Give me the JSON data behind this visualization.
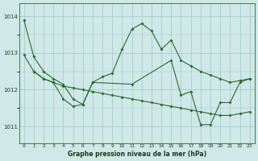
{
  "title": "Graphe pression niveau de la mer (hPa)",
  "bg_color": "#cfe8e8",
  "grid_color": "#a0c8c8",
  "line_color": "#2d6a2d",
  "xlim": [
    -0.5,
    23.5
  ],
  "ylim": [
    1010.55,
    1014.35
  ],
  "yticks": [
    1011,
    1012,
    1013,
    1014
  ],
  "xticks": [
    0,
    1,
    2,
    3,
    4,
    5,
    6,
    7,
    8,
    9,
    10,
    11,
    12,
    13,
    14,
    15,
    16,
    17,
    18,
    19,
    20,
    21,
    22,
    23
  ],
  "lineA": [
    1013.9,
    1012.9,
    1012.5,
    1012.3,
    1012.15,
    1011.75,
    1011.6,
    1012.2,
    1012.35,
    1012.45,
    1013.1,
    1013.65,
    1013.8,
    1013.6,
    1013.1,
    1013.35,
    1012.8,
    1012.65,
    1012.5,
    1012.4,
    1012.3,
    1012.2,
    1012.25,
    1012.3
  ],
  "lineB": [
    1012.95,
    1012.5,
    1012.3,
    1012.2,
    1012.1,
    1012.05,
    1012.0,
    1011.95,
    1011.9,
    1011.85,
    1011.8,
    1011.75,
    1011.7,
    1011.65,
    1011.6,
    1011.55,
    1011.5,
    1011.45,
    1011.4,
    1011.35,
    1011.3,
    1011.3,
    1011.35,
    1011.4
  ],
  "lineC_x": [
    1,
    2,
    3,
    4,
    5,
    6,
    7,
    11,
    15,
    16,
    17,
    18,
    19,
    20,
    21,
    22,
    23
  ],
  "lineC_y": [
    1012.5,
    1012.3,
    1012.2,
    1011.75,
    1011.55,
    1011.6,
    1012.2,
    1012.15,
    1012.8,
    1011.85,
    1011.95,
    1011.05,
    1011.05,
    1011.65,
    1011.65,
    1012.2,
    1012.3
  ]
}
